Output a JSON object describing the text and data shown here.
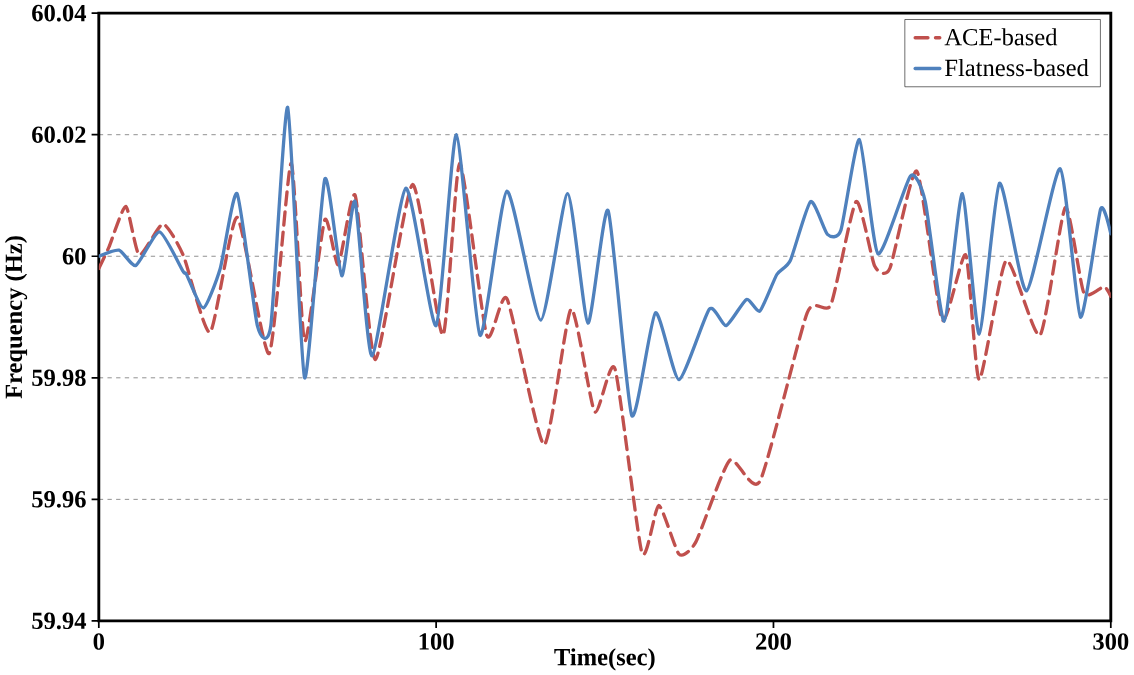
{
  "chart_data": {
    "type": "line",
    "xlabel": "Time(sec)",
    "ylabel": "Frequency (Hz)",
    "xlim": [
      0,
      300
    ],
    "ylim": [
      59.94,
      60.04
    ],
    "xticks": [
      0,
      100,
      200,
      300
    ],
    "yticks": [
      59.94,
      59.96,
      59.98,
      60,
      60.02,
      60.04
    ],
    "grid": "y",
    "legend": "top right",
    "series": [
      {
        "name": "ACE-based",
        "color": "#c0504d",
        "line_style": "dashed",
        "x": [
          0,
          3,
          8,
          12,
          19,
          25,
          33,
          41,
          50.5,
          57,
          61,
          67,
          71,
          76,
          82,
          93,
          102,
          107,
          115,
          121,
          132,
          140,
          147,
          153,
          161,
          166,
          172,
          177,
          187,
          196,
          210,
          217,
          224.5,
          230,
          234.5,
          242.5,
          250,
          257,
          261,
          269,
          279,
          286.5,
          292,
          298,
          300
        ],
        "values": [
          59.998,
          60.0015,
          60.0082,
          60.0002,
          60.0053,
          60.0002,
          59.9875,
          60.0064,
          59.984,
          60.0153,
          59.986,
          60.006,
          59.9986,
          60.01,
          59.983,
          60.0118,
          59.987,
          60.0153,
          59.987,
          59.993,
          59.969,
          59.9913,
          59.9744,
          59.9815,
          59.9512,
          59.959,
          59.951,
          59.953,
          59.9664,
          59.963,
          59.9907,
          59.992,
          60.009,
          59.9984,
          59.998,
          60.014,
          59.9895,
          60.0002,
          59.9797,
          59.9993,
          59.987,
          60.008,
          59.994,
          59.995,
          59.9934
        ]
      },
      {
        "name": "Flatness-based",
        "color": "#4f81bd",
        "line_style": "solid",
        "x": [
          0,
          6,
          11,
          18,
          25,
          26,
          31,
          36,
          41,
          47,
          51,
          56,
          61,
          67,
          72,
          76,
          81,
          91,
          100,
          106,
          113,
          121,
          131,
          139,
          145,
          151,
          158,
          165,
          172,
          181,
          186,
          192,
          196,
          201,
          205,
          211,
          216,
          220,
          225.5,
          231,
          240.6,
          245,
          250.6,
          256,
          261,
          267,
          275,
          285,
          291,
          297,
          300
        ],
        "values": [
          60.0,
          60.001,
          59.9985,
          60.004,
          59.9975,
          59.997,
          59.9915,
          59.998,
          60.0103,
          59.9886,
          59.9886,
          60.0245,
          59.98,
          60.0127,
          59.9968,
          60.009,
          59.9836,
          60.0112,
          59.9886,
          60.02,
          59.987,
          60.0107,
          59.9895,
          60.0103,
          59.989,
          60.0075,
          59.9738,
          59.9907,
          59.9797,
          59.9913,
          59.9886,
          59.9929,
          59.991,
          59.997,
          59.9993,
          60.009,
          60.0036,
          60.0043,
          60.0192,
          60.0004,
          60.0132,
          60.009,
          59.9893,
          60.0103,
          59.9872,
          60.012,
          59.9943,
          60.0144,
          59.99,
          60.0078,
          60.0037
        ]
      }
    ]
  }
}
